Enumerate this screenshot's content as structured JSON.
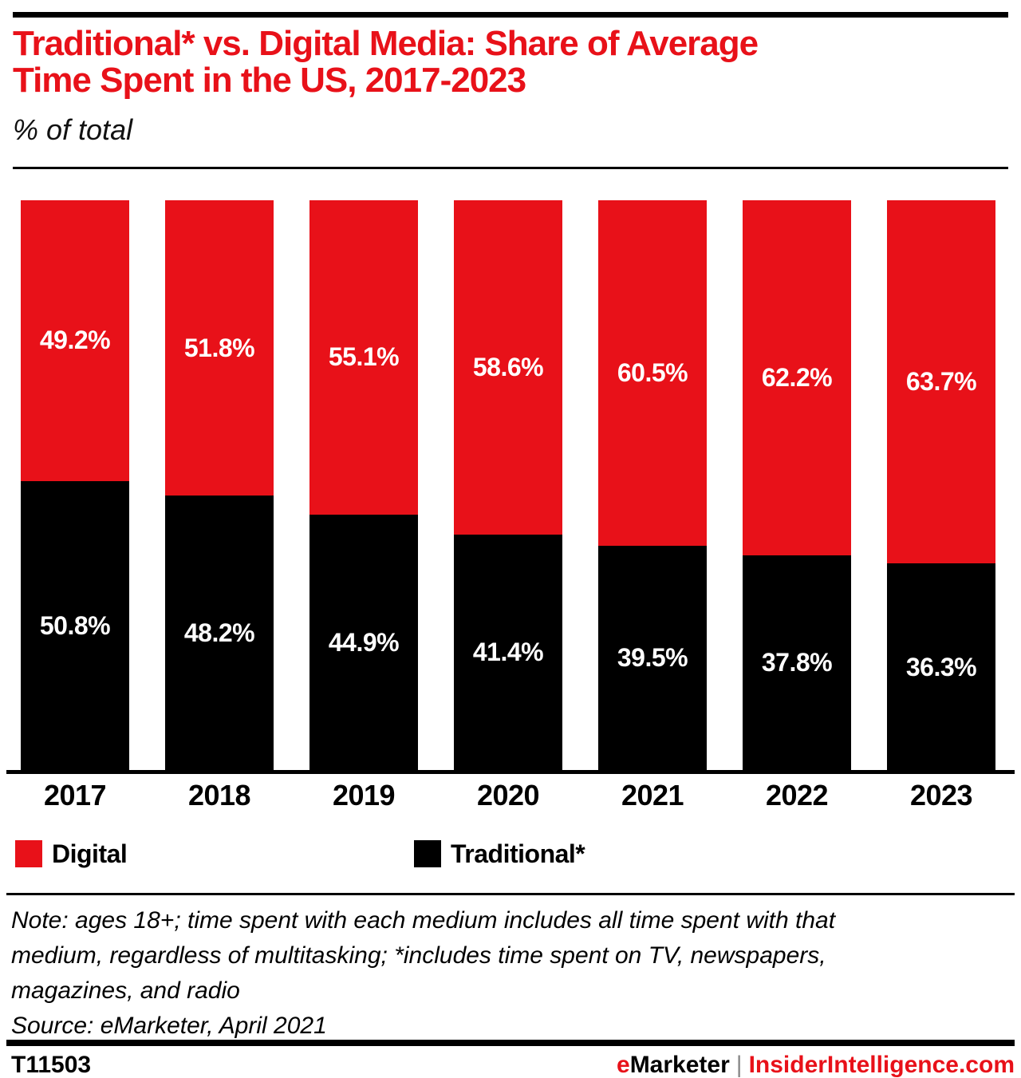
{
  "header": {
    "title_line1": "Traditional* vs. Digital Media: Share of Average",
    "title_line2": "Time Spent in the US, 2017-2023",
    "subtitle": "% of total"
  },
  "chart_data": {
    "type": "bar",
    "stacked": true,
    "title": "Traditional* vs. Digital Media: Share of Average Time Spent in the US, 2017-2023",
    "subtitle": "% of total",
    "categories": [
      "2017",
      "2018",
      "2019",
      "2020",
      "2021",
      "2022",
      "2023"
    ],
    "series": [
      {
        "name": "Digital",
        "color": "#e81119",
        "values": [
          49.2,
          51.8,
          55.1,
          58.6,
          60.5,
          62.2,
          63.7
        ]
      },
      {
        "name": "Traditional*",
        "color": "#000000",
        "values": [
          50.8,
          48.2,
          44.9,
          41.4,
          39.5,
          37.8,
          36.3
        ]
      }
    ],
    "value_suffix": "%",
    "ylim": [
      0,
      100
    ],
    "grid": false,
    "legend_position": "bottom",
    "xlabel": "",
    "ylabel": "% of total"
  },
  "legend": {
    "items": [
      {
        "label": "Digital",
        "color": "#e81119"
      },
      {
        "label": "Traditional*",
        "color": "#000000"
      }
    ]
  },
  "notes": {
    "lines": [
      "Note: ages 18+; time spent with each medium includes all time spent with that",
      "medium, regardless of multitasking; *includes time spent on TV, newspapers,",
      "magazines, and radio"
    ],
    "source": "Source: eMarketer, April 2021"
  },
  "footer": {
    "chart_id": "T11503",
    "brand_e": "e",
    "brand_rest": "Marketer",
    "divider": "|",
    "site": "InsiderIntelligence.com"
  },
  "colors": {
    "accent_red": "#e81119",
    "black": "#000000",
    "divider_gray": "#8a8a8a"
  }
}
